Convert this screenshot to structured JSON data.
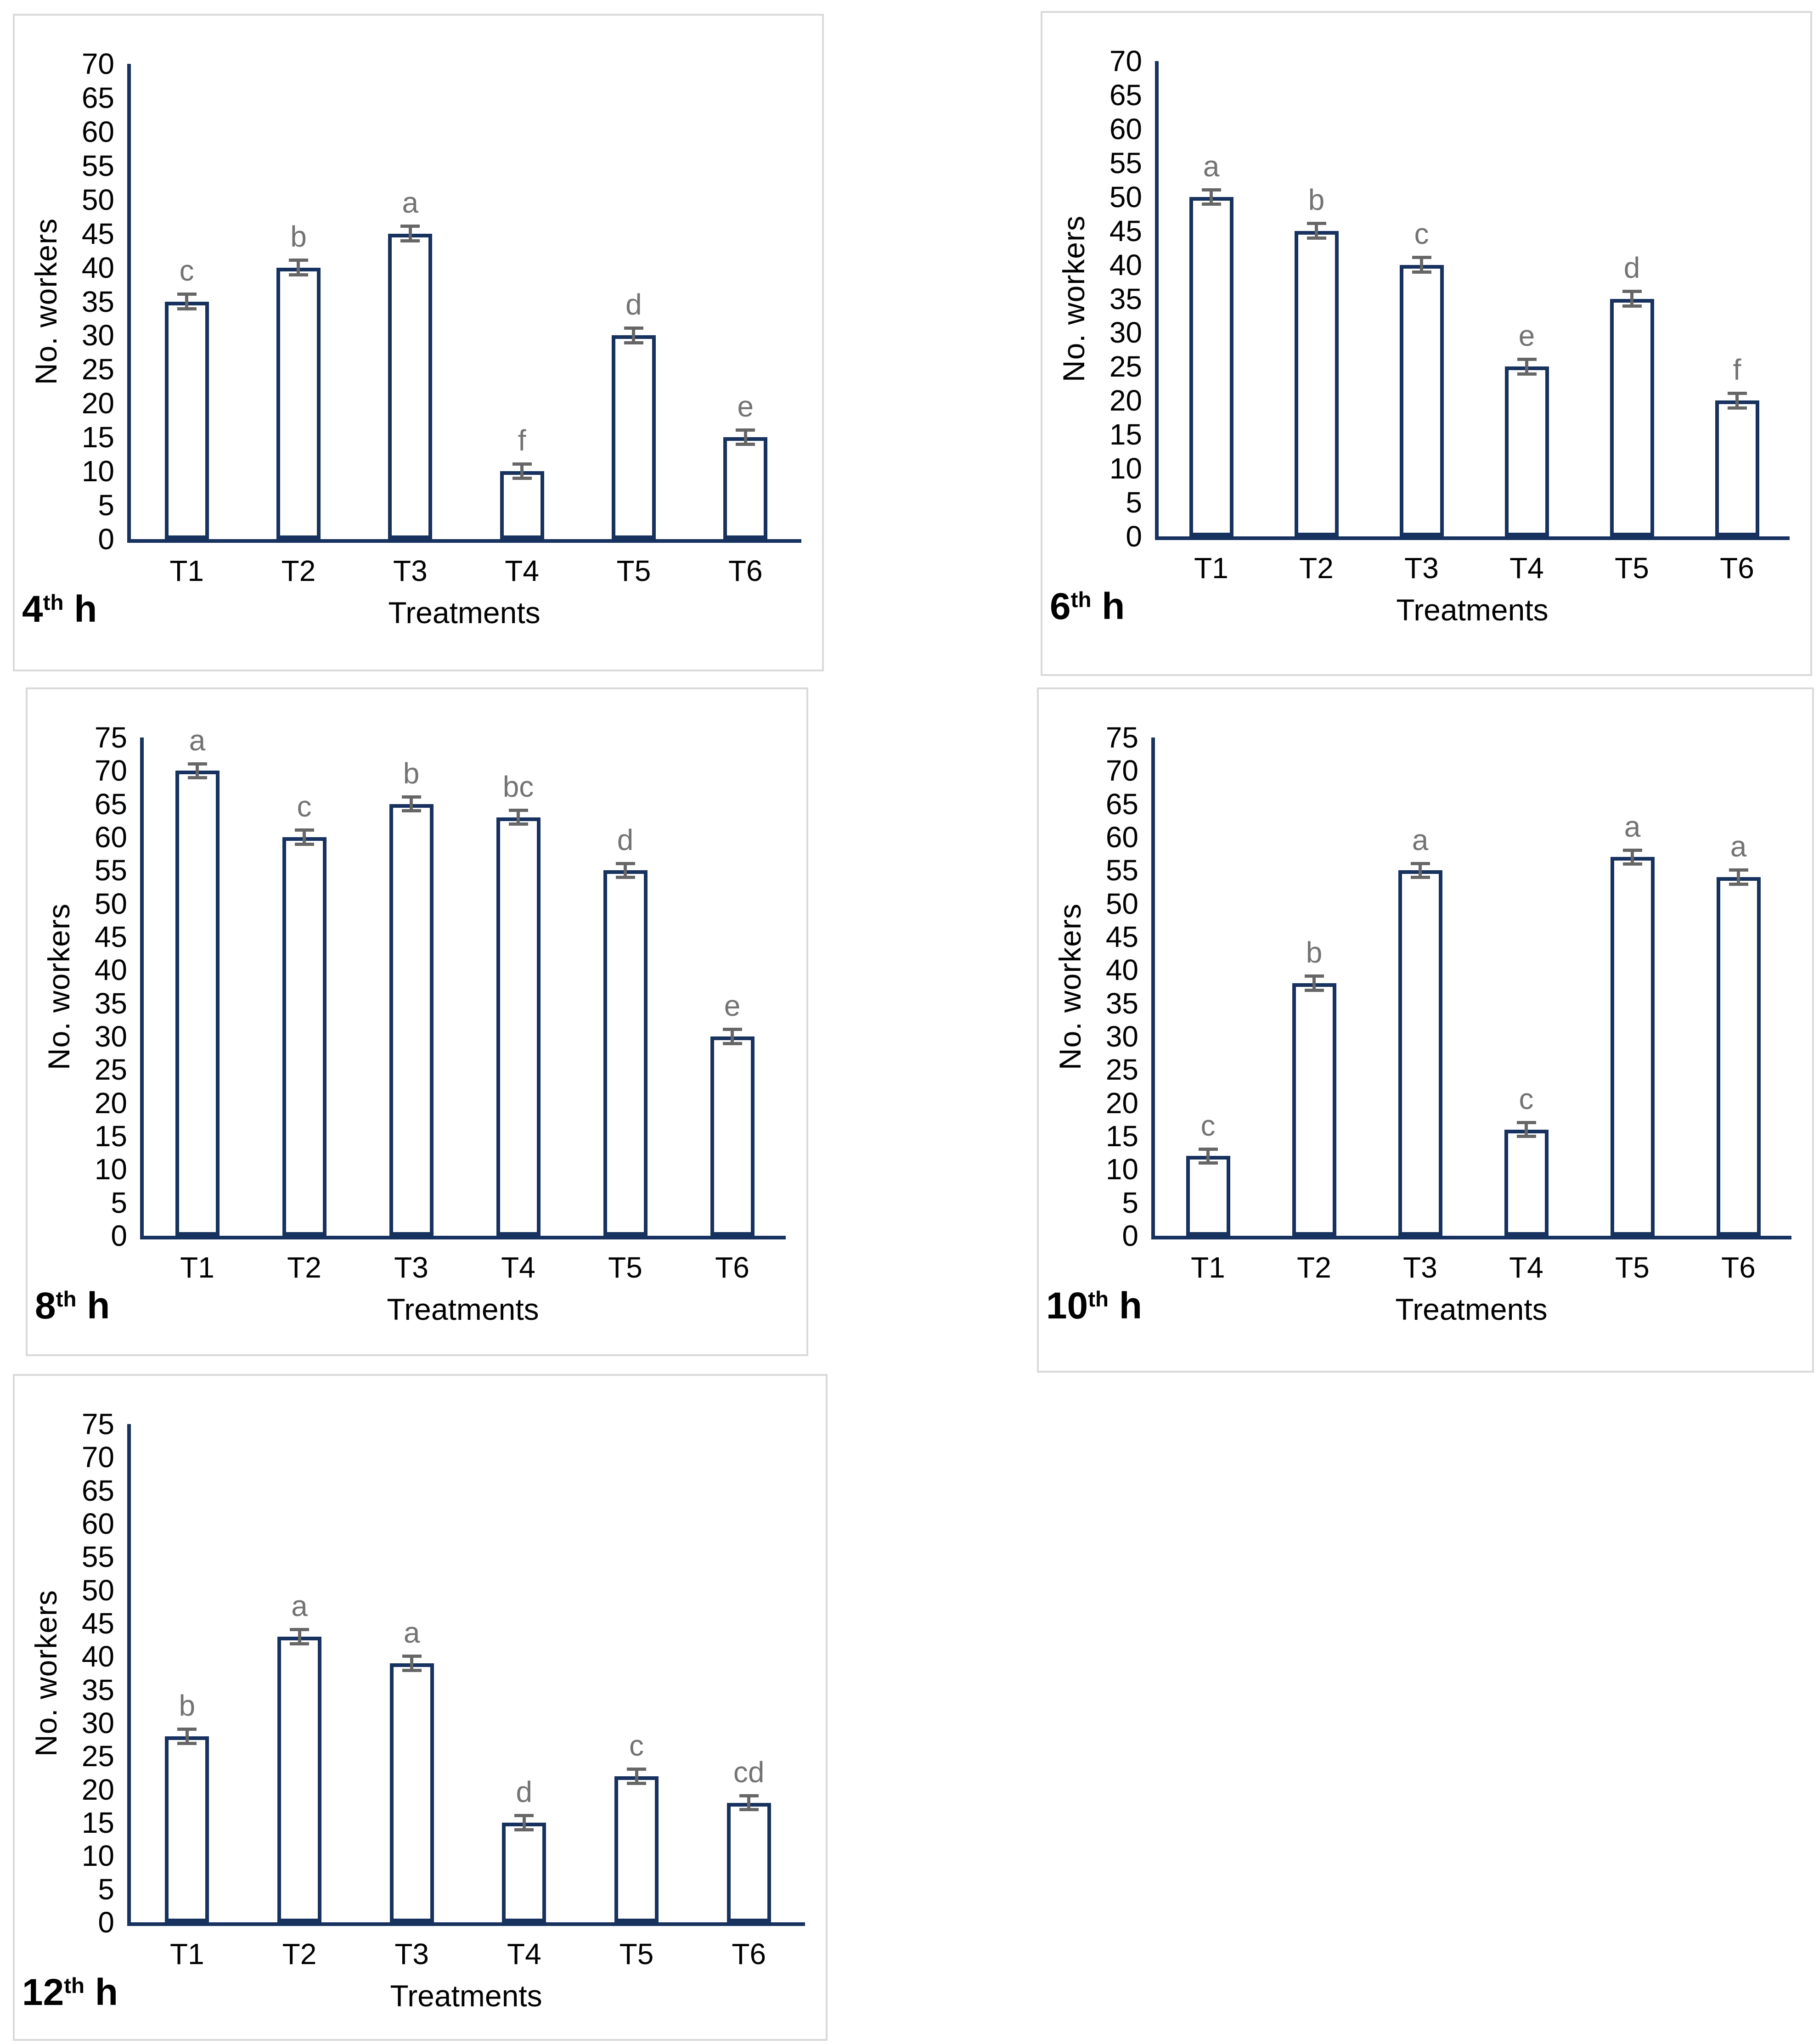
{
  "colors": {
    "bar_border": "#17325F",
    "bar_fill": "#FFFFFF",
    "error_bar": "#666666",
    "sig_letter": "#737373",
    "panel_border": "#D9D9D9",
    "text": "#000000"
  },
  "chart_data": [
    {
      "type": "bar",
      "panel_label": {
        "num": "4",
        "sup": "th",
        "rest": " h"
      },
      "xlabel": "Treatments",
      "ylabel": "No. workers",
      "ylim": [
        0,
        70
      ],
      "ystep": 5,
      "grid": false,
      "legend": false,
      "categories": [
        "T1",
        "T2",
        "T3",
        "T4",
        "T5",
        "T6"
      ],
      "values": [
        35,
        40,
        45,
        10,
        30,
        15
      ],
      "sig_letters": [
        "c",
        "b",
        "a",
        "f",
        "d",
        "e"
      ],
      "error_bars": 1.3
    },
    {
      "type": "bar",
      "panel_label": {
        "num": "6",
        "sup": "th",
        "rest": " h"
      },
      "xlabel": "Treatments",
      "ylabel": "No. workers",
      "ylim": [
        0,
        70
      ],
      "ystep": 5,
      "grid": false,
      "legend": false,
      "categories": [
        "T1",
        "T2",
        "T3",
        "T4",
        "T5",
        "T6"
      ],
      "values": [
        50,
        45,
        40,
        25,
        35,
        20
      ],
      "sig_letters": [
        "a",
        "b",
        "c",
        "e",
        "d",
        "f"
      ],
      "error_bars": 1.3
    },
    {
      "type": "bar",
      "panel_label": {
        "num": "8",
        "sup": "th",
        "rest": " h"
      },
      "xlabel": "Treatments",
      "ylabel": "No. workers",
      "ylim": [
        0,
        75
      ],
      "ystep": 5,
      "grid": false,
      "legend": false,
      "categories": [
        "T1",
        "T2",
        "T3",
        "T4",
        "T5",
        "T6"
      ],
      "values": [
        70,
        60,
        65,
        63,
        55,
        30
      ],
      "sig_letters": [
        "a",
        "c",
        "b",
        "bc",
        "d",
        "e"
      ],
      "error_bars": 1.3
    },
    {
      "type": "bar",
      "panel_label": {
        "num": "10",
        "sup": "th",
        "rest": " h"
      },
      "xlabel": "Treatments",
      "ylabel": "No. workers",
      "ylim": [
        0,
        75
      ],
      "ystep": 5,
      "grid": false,
      "legend": false,
      "categories": [
        "T1",
        "T2",
        "T3",
        "T4",
        "T5",
        "T6"
      ],
      "values": [
        12,
        38,
        55,
        16,
        57,
        54
      ],
      "sig_letters": [
        "c",
        "b",
        "a",
        "c",
        "a",
        "a"
      ],
      "error_bars": 1.3
    },
    {
      "type": "bar",
      "panel_label": {
        "num": "12",
        "sup": "th",
        "rest": " h"
      },
      "xlabel": "Treatments",
      "ylabel": "No. workers",
      "ylim": [
        0,
        75
      ],
      "ystep": 5,
      "grid": false,
      "legend": false,
      "categories": [
        "T1",
        "T2",
        "T3",
        "T4",
        "T5",
        "T6"
      ],
      "values": [
        28,
        43,
        39,
        15,
        22,
        18
      ],
      "sig_letters": [
        "b",
        "a",
        "a",
        "d",
        "c",
        "cd"
      ],
      "error_bars": 1.3
    }
  ]
}
